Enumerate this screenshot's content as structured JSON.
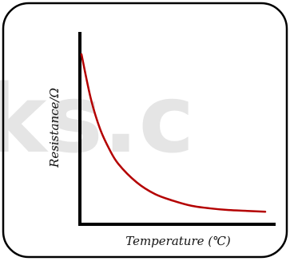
{
  "chart_data": {
    "type": "line",
    "xlabel": "Temperature (℃)",
    "ylabel": "Resistance/Ω",
    "series": [
      {
        "values_description": "",
        "x": [
          0,
          5,
          10,
          15,
          20,
          30,
          40,
          50,
          60,
          70,
          80,
          90,
          100
        ],
        "y": [
          100,
          74,
          56,
          44,
          35,
          24,
          17,
          13,
          10,
          8.5,
          7.5,
          7,
          6.5
        ]
      }
    ],
    "xlim": [
      0,
      100
    ],
    "ylim": [
      0,
      100
    ],
    "grid": false,
    "ticks": false
  },
  "watermark": {
    "text": "ks.c"
  },
  "colors": {
    "curve": "#b40000",
    "axes": "#000000",
    "frame": "#000000",
    "watermark": "#e5e5e5"
  }
}
